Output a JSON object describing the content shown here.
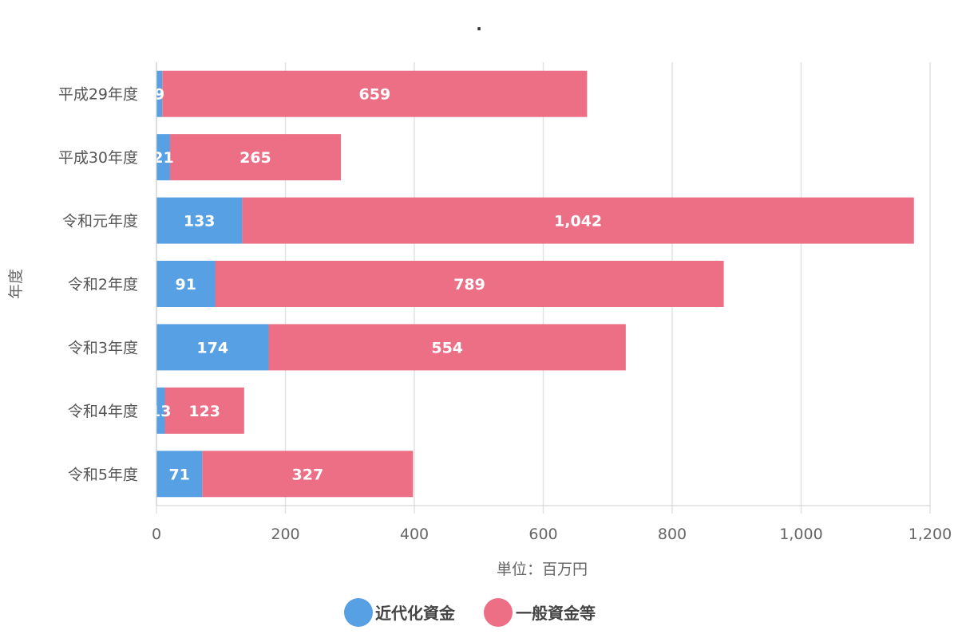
{
  "chart_data": {
    "type": "bar",
    "orientation": "horizontal",
    "stacked": true,
    "title": ".",
    "xlabel": "単位：百万円",
    "ylabel": "年度",
    "xlim": [
      0,
      1200
    ],
    "x_ticks": [
      0,
      200,
      400,
      600,
      800,
      1000,
      1200
    ],
    "x_tick_labels": [
      "0",
      "200",
      "400",
      "600",
      "800",
      "1,000",
      "1,200"
    ],
    "categories": [
      "平成29年度",
      "平成30年度",
      "令和元年度",
      "令和2年度",
      "令和3年度",
      "令和4年度",
      "令和5年度"
    ],
    "series": [
      {
        "name": "近代化資金",
        "color": "#58a0e4",
        "values": [
          9,
          21,
          133,
          91,
          174,
          13,
          71
        ],
        "value_labels": [
          "9",
          "21",
          "133",
          "91",
          "174",
          "13",
          "71"
        ]
      },
      {
        "name": "一般資金等",
        "color": "#ec6f85",
        "values": [
          659,
          265,
          1042,
          789,
          554,
          123,
          327
        ],
        "value_labels": [
          "659",
          "265",
          "1,042",
          "789",
          "554",
          "123",
          "327"
        ]
      }
    ],
    "grid": true,
    "legend_position": "bottom"
  }
}
